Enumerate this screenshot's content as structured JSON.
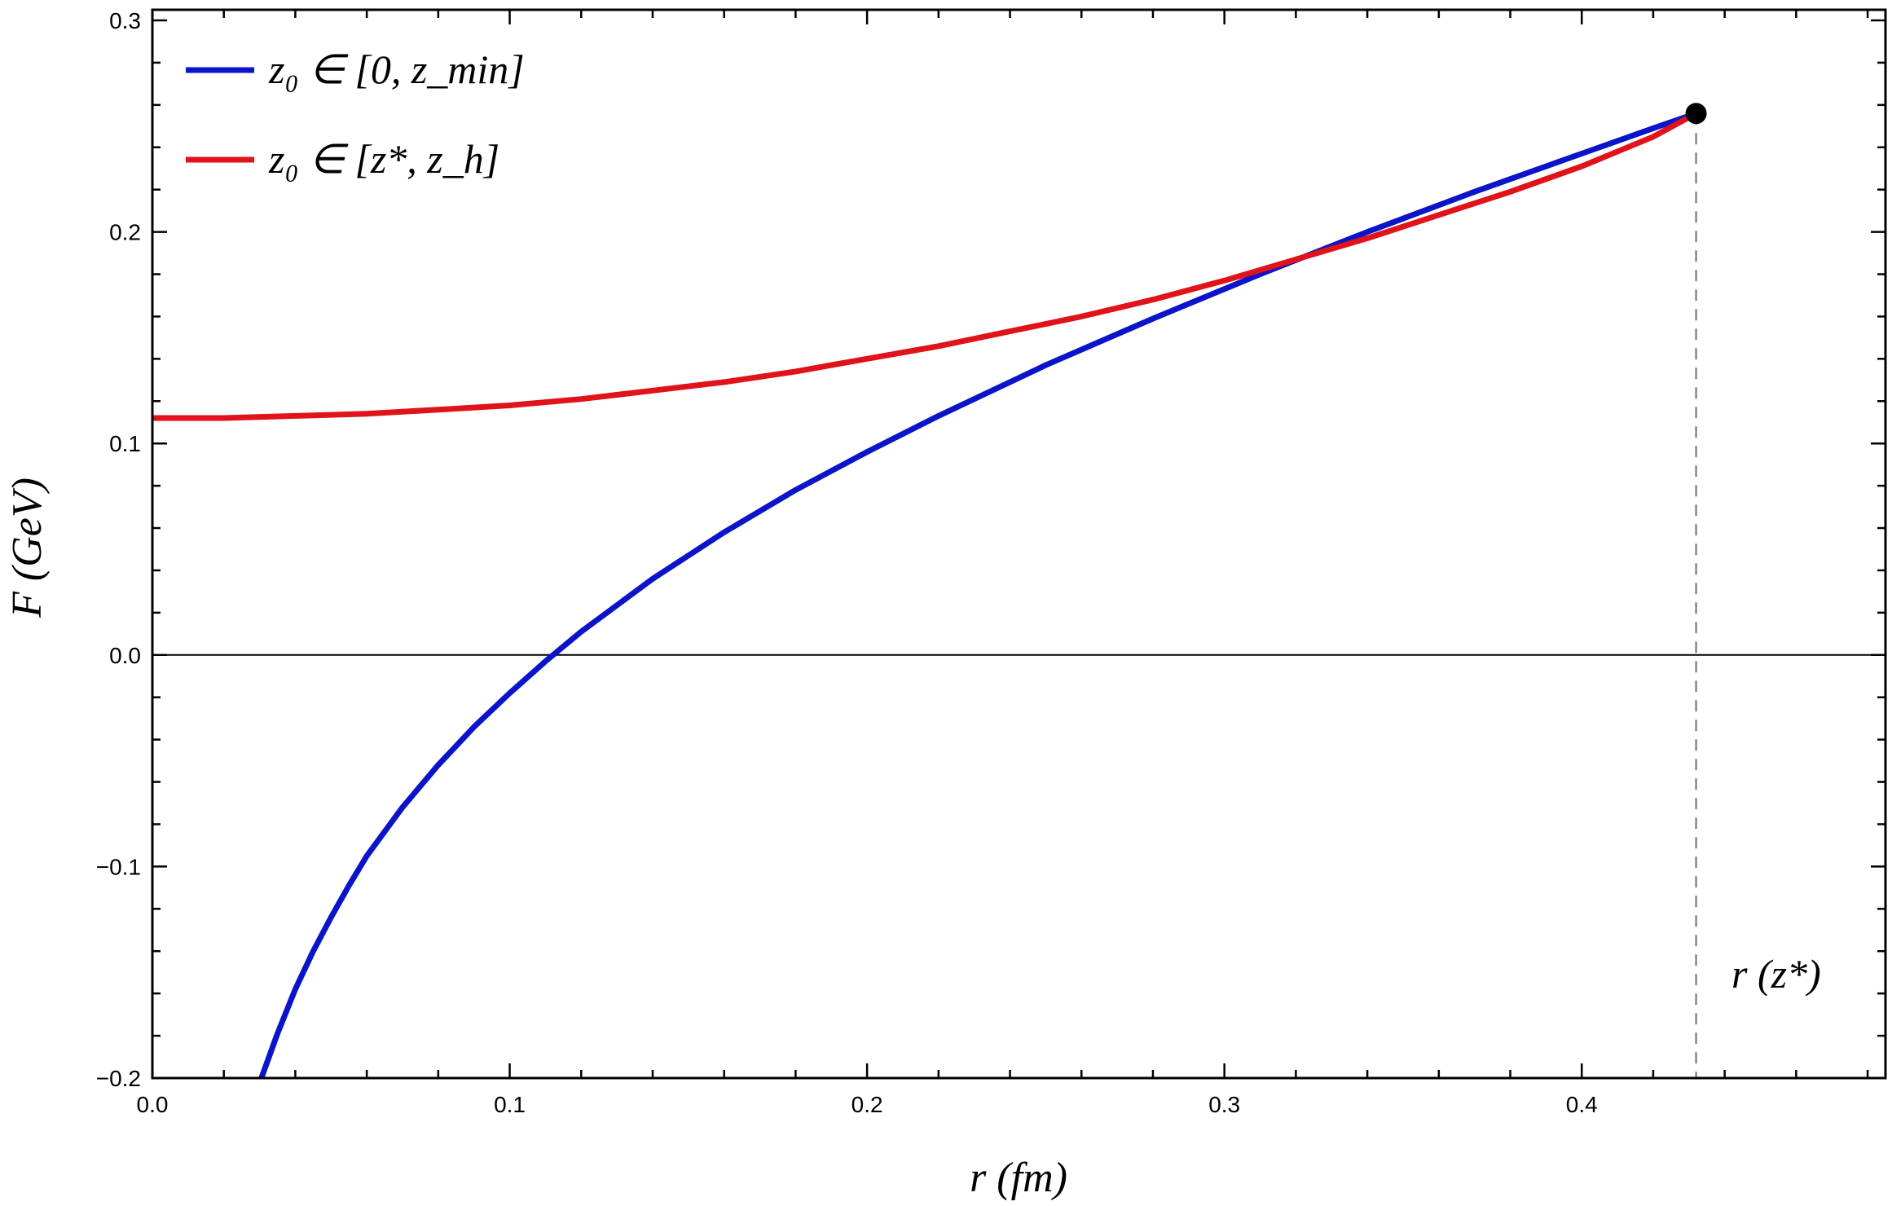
{
  "chart_data": {
    "type": "line",
    "xlabel": "r  (fm)",
    "ylabel": "F  (GeV)",
    "xlim": [
      0.0,
      0.485
    ],
    "ylim": [
      -0.2,
      0.305
    ],
    "x_ticks": [
      0.0,
      0.1,
      0.2,
      0.3,
      0.4
    ],
    "x_tick_labels": [
      "0.0",
      "0.1",
      "0.2",
      "0.3",
      "0.4"
    ],
    "y_ticks": [
      -0.2,
      -0.1,
      0.0,
      0.1,
      0.2,
      0.3
    ],
    "y_tick_labels": [
      "−0.2",
      "−0.1",
      "0.0",
      "0.1",
      "0.2",
      "0.3"
    ],
    "grid": false,
    "legend_position": "top-left",
    "zero_line": true,
    "series": [
      {
        "name": "z₀ ∈ [0, z_min]",
        "color": "#0a14c8",
        "x": [
          0.0305,
          0.035,
          0.04,
          0.045,
          0.05,
          0.055,
          0.06,
          0.07,
          0.08,
          0.09,
          0.1,
          0.11,
          0.12,
          0.14,
          0.16,
          0.18,
          0.2,
          0.22,
          0.25,
          0.28,
          0.31,
          0.34,
          0.37,
          0.4,
          0.42,
          0.432
        ],
        "y": [
          -0.2,
          -0.179,
          -0.158,
          -0.14,
          -0.124,
          -0.109,
          -0.095,
          -0.072,
          -0.052,
          -0.034,
          -0.018,
          -0.003,
          0.011,
          0.036,
          0.058,
          0.078,
          0.096,
          0.113,
          0.137,
          0.159,
          0.18,
          0.2,
          0.219,
          0.237,
          0.249,
          0.256
        ]
      },
      {
        "name": "z₀ ∈ [z*, z_h]",
        "color": "#e0121a",
        "x": [
          0.0,
          0.02,
          0.04,
          0.06,
          0.08,
          0.1,
          0.12,
          0.14,
          0.16,
          0.18,
          0.2,
          0.22,
          0.24,
          0.26,
          0.28,
          0.3,
          0.32,
          0.34,
          0.36,
          0.38,
          0.4,
          0.42,
          0.432
        ],
        "y": [
          0.112,
          0.112,
          0.113,
          0.114,
          0.116,
          0.118,
          0.121,
          0.125,
          0.129,
          0.134,
          0.14,
          0.146,
          0.153,
          0.16,
          0.168,
          0.177,
          0.187,
          0.197,
          0.208,
          0.219,
          0.231,
          0.245,
          0.256
        ]
      }
    ],
    "point": {
      "x": 0.432,
      "y": 0.256
    },
    "annotation": {
      "text": "r (z*)",
      "x": 0.432
    }
  }
}
